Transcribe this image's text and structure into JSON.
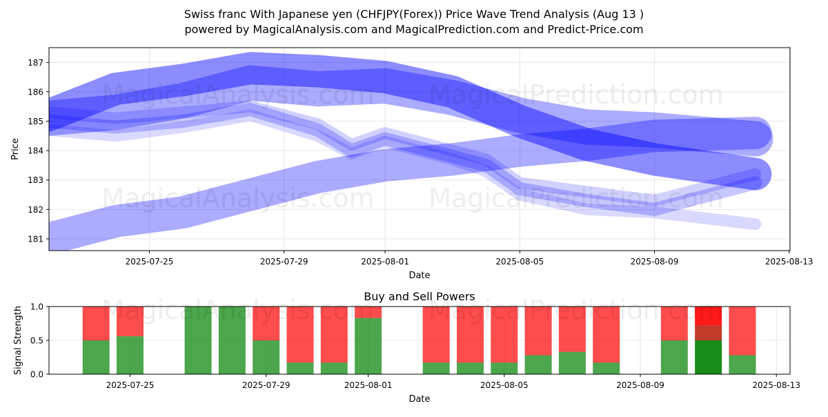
{
  "title_line1": "Swiss franc With Japanese yen (CHFJPY(Forex)) Price Wave Trend Analysis (Aug 13 )",
  "title_line2": "powered by MagicalAnalysis.com and MagicalPrediction.com and Predict-Price.com",
  "watermarks": [
    "MagicalAnalysis.com",
    "MagicalPrediction.com"
  ],
  "colors": {
    "wave": "#0000ff",
    "buy": "#008000",
    "sell": "#ff0000",
    "buy_strong": "#008000",
    "sell_strong": "#ff0000"
  },
  "chart_data": [
    {
      "type": "area",
      "xlabel": "Date",
      "ylabel": "Price",
      "ylim": [
        180.6,
        187.5
      ],
      "yticks": [
        "181",
        "182",
        "183",
        "184",
        "185",
        "186",
        "187"
      ],
      "xticks": [
        "2025-07-25",
        "2025-07-29",
        "2025-08-01",
        "2025-08-05",
        "2025-08-09",
        "2025-08-13"
      ],
      "grid": true,
      "series": [
        {
          "x": [
            "2025-07-22",
            "2025-07-24",
            "2025-07-26",
            "2025-07-28",
            "2025-07-30",
            "2025-08-01",
            "2025-08-03",
            "2025-08-05",
            "2025-08-07",
            "2025-08-09",
            "2025-08-12"
          ],
          "center": [
            185.1,
            185.3,
            185.7,
            186.3,
            186.1,
            186.2,
            185.8,
            185.2,
            184.8,
            184.7,
            184.4
          ],
          "width": 1.2
        },
        {
          "x": [
            "2025-07-22",
            "2025-07-24",
            "2025-07-26",
            "2025-07-28",
            "2025-07-30",
            "2025-08-01",
            "2025-08-03",
            "2025-08-05",
            "2025-08-07",
            "2025-08-09",
            "2025-08-12"
          ],
          "center": [
            185.2,
            186.1,
            186.4,
            186.8,
            186.7,
            186.5,
            186.0,
            185.0,
            184.2,
            183.7,
            183.2
          ],
          "width": 1.1
        },
        {
          "x": [
            "2025-07-22",
            "2025-07-24",
            "2025-07-26",
            "2025-07-28",
            "2025-07-30",
            "2025-08-01",
            "2025-08-03",
            "2025-08-05",
            "2025-08-07",
            "2025-08-09",
            "2025-08-12"
          ],
          "center": [
            181.0,
            181.6,
            181.9,
            182.5,
            183.1,
            183.5,
            183.7,
            184.0,
            184.2,
            184.5,
            184.6
          ],
          "width": 1.1
        },
        {
          "x": [
            "2025-07-22",
            "2025-07-24",
            "2025-07-26",
            "2025-07-28",
            "2025-07-30",
            "2025-07-31",
            "2025-08-01",
            "2025-08-03",
            "2025-08-04",
            "2025-08-05",
            "2025-08-07",
            "2025-08-09",
            "2025-08-12"
          ],
          "center": [
            185.0,
            184.8,
            185.0,
            185.4,
            184.7,
            184.0,
            184.4,
            183.8,
            183.5,
            182.7,
            182.3,
            182.0,
            182.9
          ],
          "width": 0.45
        },
        {
          "x": [
            "2025-07-22",
            "2025-07-24",
            "2025-07-26",
            "2025-07-28",
            "2025-07-30",
            "2025-07-31",
            "2025-08-01",
            "2025-08-03",
            "2025-08-04",
            "2025-08-05",
            "2025-08-07",
            "2025-08-09",
            "2025-08-12"
          ],
          "center": [
            184.7,
            184.5,
            184.8,
            185.2,
            184.5,
            183.9,
            184.3,
            183.7,
            183.3,
            182.5,
            182.0,
            181.9,
            181.5
          ],
          "width": 0.4
        },
        {
          "x": [
            "2025-07-22",
            "2025-07-24",
            "2025-07-26",
            "2025-07-28",
            "2025-07-30",
            "2025-07-31",
            "2025-08-01",
            "2025-08-03",
            "2025-08-04",
            "2025-08-05",
            "2025-08-07",
            "2025-08-09",
            "2025-08-12"
          ],
          "center": [
            185.3,
            185.1,
            185.3,
            185.5,
            184.9,
            184.2,
            184.6,
            184.0,
            183.7,
            182.9,
            182.6,
            182.3,
            183.2
          ],
          "width": 0.4
        }
      ]
    },
    {
      "type": "bar",
      "title": "Buy and Sell Powers",
      "xlabel": "Date",
      "ylabel": "Signal Strength",
      "ylim": [
        0,
        1.0
      ],
      "yticks": [
        "0.0",
        "0.5",
        "1.0"
      ],
      "xticks": [
        "2025-07-25",
        "2025-07-29",
        "2025-08-01",
        "2025-08-05",
        "2025-08-09",
        "2025-08-13"
      ],
      "bars": [
        {
          "x": "2025-07-24",
          "buy": 0.5
        },
        {
          "x": "2025-07-25",
          "buy": 0.56
        },
        {
          "x": "2025-07-27",
          "buy": 1.0
        },
        {
          "x": "2025-07-28",
          "buy": 1.0
        },
        {
          "x": "2025-07-29",
          "buy": 0.5
        },
        {
          "x": "2025-07-30",
          "buy": 0.17
        },
        {
          "x": "2025-07-31",
          "buy": 0.17
        },
        {
          "x": "2025-08-01",
          "buy": 0.83
        },
        {
          "x": "2025-08-03",
          "buy": 0.17
        },
        {
          "x": "2025-08-04",
          "buy": 0.17
        },
        {
          "x": "2025-08-05",
          "buy": 0.17
        },
        {
          "x": "2025-08-06",
          "buy": 0.28
        },
        {
          "x": "2025-08-07",
          "buy": 0.33
        },
        {
          "x": "2025-08-08",
          "buy": 0.17
        },
        {
          "x": "2025-08-10",
          "buy": 0.5
        },
        {
          "x": "2025-08-11",
          "buy": 0.5,
          "strong": true,
          "mid": 0.72
        },
        {
          "x": "2025-08-12",
          "buy": 0.28
        }
      ]
    }
  ]
}
